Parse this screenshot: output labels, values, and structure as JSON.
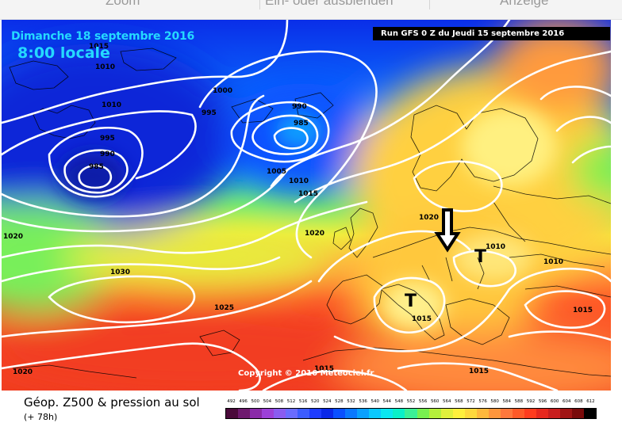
{
  "toolbar": {
    "items": [
      {
        "label": "Zoom"
      },
      {
        "label": "Ein- oder ausblenden"
      },
      {
        "label": "Anzeige"
      }
    ]
  },
  "map": {
    "date_line": "Dimanche 18 septembre 2016",
    "time_line": "8:00 locale",
    "run_info": "Run GFS 0 Z du Jeudi 15 septembre 2016",
    "copyright": "Copyright © 2016 Meteociel.fr",
    "isobar_labels": [
      "1015",
      "1010",
      "1010",
      "995",
      "990",
      "985",
      "1000",
      "995",
      "990",
      "985",
      "1005",
      "1010",
      "1015",
      "1020",
      "1020",
      "1020",
      "1030",
      "1025",
      "1010",
      "1010",
      "1015",
      "1015",
      "1020",
      "1015",
      "1015"
    ],
    "pressure_centers": [
      "T",
      "T"
    ],
    "annotation": "down-arrow"
  },
  "legend": {
    "title": "Géop. Z500 & pression au sol",
    "subtitle": "(+ 78h)",
    "scale_values": [
      "492",
      "496",
      "500",
      "504",
      "508",
      "512",
      "516",
      "520",
      "524",
      "528",
      "532",
      "536",
      "540",
      "544",
      "548",
      "552",
      "556",
      "560",
      "564",
      "568",
      "572",
      "576",
      "580",
      "584",
      "588",
      "592",
      "596",
      "600",
      "604",
      "608",
      "612"
    ],
    "scale_colors": [
      "#4a0a3a",
      "#6e1a6e",
      "#8a2aa8",
      "#9c40d8",
      "#8a5cf0",
      "#6a6cff",
      "#3c5cff",
      "#1e3cff",
      "#0a28e8",
      "#0a50ff",
      "#0a78ff",
      "#0aa0ff",
      "#0ac8ff",
      "#0ae6f0",
      "#0af0c8",
      "#3cf096",
      "#78f050",
      "#b4f03c",
      "#e0f03c",
      "#fff03c",
      "#ffd83c",
      "#ffb83c",
      "#ff963c",
      "#ff783c",
      "#ff5a28",
      "#ff3c1e",
      "#e6281e",
      "#c81e1e",
      "#a01414",
      "#780a0a",
      "#000000"
    ]
  }
}
